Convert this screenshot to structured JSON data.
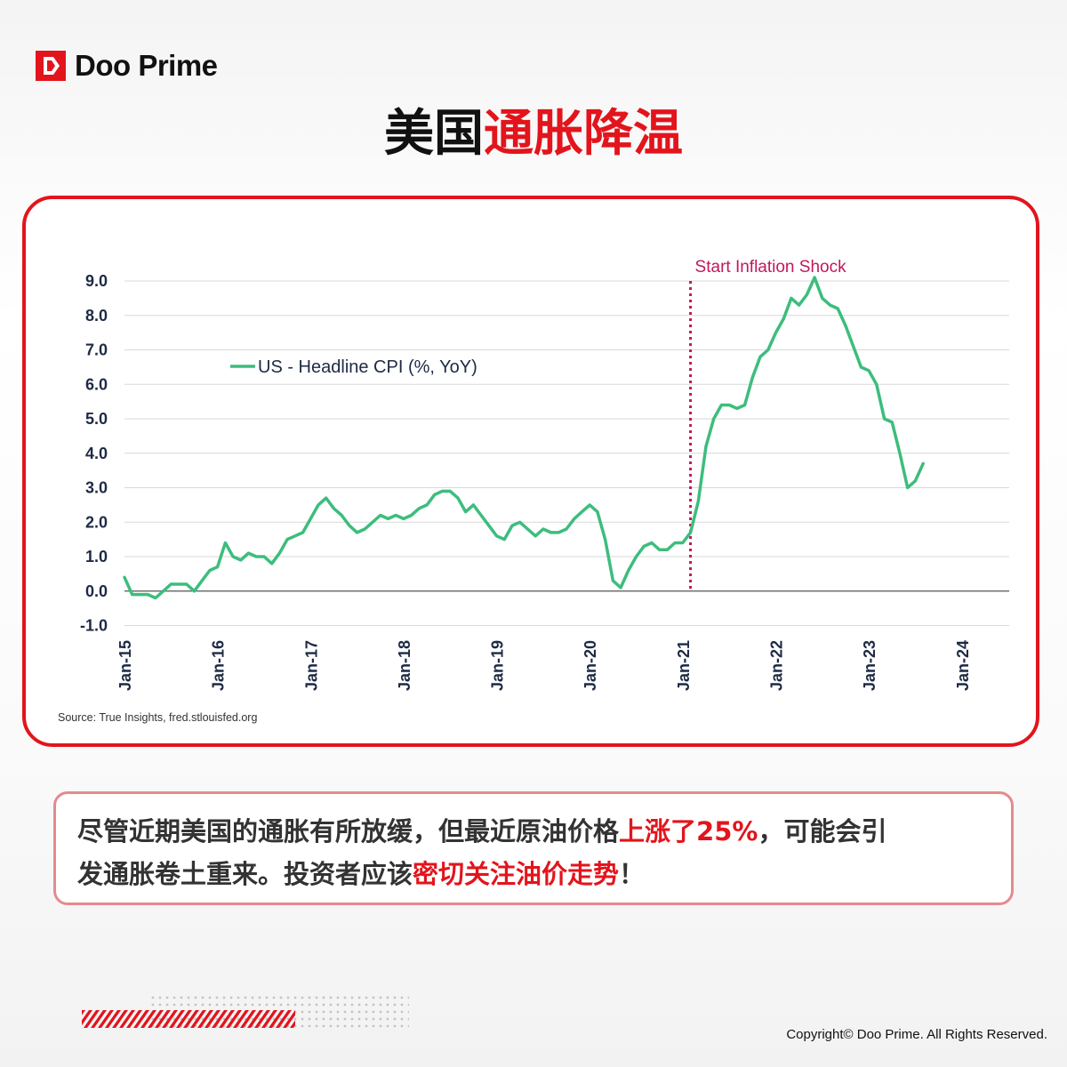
{
  "brand": {
    "name": "Doo Prime",
    "color": "#e3141c",
    "logo_icon": "doo-prime-logo-icon"
  },
  "title": {
    "part1": "美国",
    "part2": "通胀降温"
  },
  "chart_data": {
    "type": "line",
    "ylim": [
      -1.0,
      9.0
    ],
    "yticks": [
      "9.0",
      "8.0",
      "7.0",
      "6.0",
      "5.0",
      "4.0",
      "3.0",
      "2.0",
      "1.0",
      "0.0",
      "-1.0"
    ],
    "xtick_labels": [
      "Jan-15",
      "Jan-16",
      "Jan-17",
      "Jan-18",
      "Jan-19",
      "Jan-20",
      "Jan-21",
      "Jan-22",
      "Jan-23",
      "Jan-24"
    ],
    "grid": true,
    "legend": "top-left",
    "series": [
      {
        "name": "US - Headline CPI (%, YoY)",
        "color": "#3dbd7d",
        "start": "Jan-15",
        "frequency": "monthly",
        "values": [
          0.4,
          -0.1,
          -0.1,
          -0.1,
          -0.2,
          0.0,
          0.2,
          0.2,
          0.2,
          0.0,
          0.3,
          0.6,
          0.7,
          1.4,
          1.0,
          0.9,
          1.1,
          1.0,
          1.0,
          0.8,
          1.1,
          1.5,
          1.6,
          1.7,
          2.1,
          2.5,
          2.7,
          2.4,
          2.2,
          1.9,
          1.7,
          1.8,
          2.0,
          2.2,
          2.1,
          2.2,
          2.1,
          2.2,
          2.4,
          2.5,
          2.8,
          2.9,
          2.9,
          2.7,
          2.3,
          2.5,
          2.2,
          1.9,
          1.6,
          1.5,
          1.9,
          2.0,
          1.8,
          1.6,
          1.8,
          1.7,
          1.7,
          1.8,
          2.1,
          2.3,
          2.5,
          2.3,
          1.5,
          0.3,
          0.1,
          0.6,
          1.0,
          1.3,
          1.4,
          1.2,
          1.2,
          1.4,
          1.4,
          1.7,
          2.6,
          4.2,
          5.0,
          5.4,
          5.4,
          5.3,
          5.4,
          6.2,
          6.8,
          7.0,
          7.5,
          7.9,
          8.5,
          8.3,
          8.6,
          9.1,
          8.5,
          8.3,
          8.2,
          7.7,
          7.1,
          6.5,
          6.4,
          6.0,
          5.0,
          4.9,
          4.0,
          3.0,
          3.2,
          3.7
        ]
      }
    ],
    "annotation": {
      "label": "Start Inflation Shock",
      "x": "Feb-21",
      "color": "#c2185b"
    }
  },
  "source": "Source: True Insights, fred.stlouisfed.org",
  "note": {
    "line1_a": "尽管近期美国的通胀有所放缓，但最近原油价格",
    "line1_hl": "上涨了25%",
    "line1_b": "，可能会引",
    "line2_a": "发通胀卷土重来。投资者应该",
    "line2_hl": "密切关注油价走势",
    "line2_b": "！"
  },
  "copyright": "Copyright© Doo Prime. All Rights Reserved."
}
